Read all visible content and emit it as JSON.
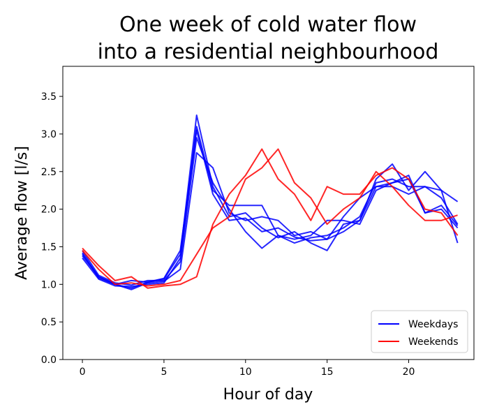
{
  "chart_data": {
    "type": "line",
    "title_lines": [
      "One week of cold water flow",
      "into a residential neighbourhood"
    ],
    "xlabel": "Hour of day",
    "ylabel": "Average flow [l/s]",
    "xlim": [
      -1.2,
      24.0
    ],
    "ylim": [
      0.0,
      3.9
    ],
    "xticks": [
      0,
      5,
      10,
      15,
      20
    ],
    "xtick_labels": [
      "0",
      "5",
      "10",
      "15",
      "20"
    ],
    "yticks": [
      0.0,
      0.5,
      1.0,
      1.5,
      2.0,
      2.5,
      3.0,
      3.5
    ],
    "ytick_labels": [
      "0.0",
      "0.5",
      "1.0",
      "1.5",
      "2.0",
      "2.5",
      "3.0",
      "3.5"
    ],
    "grid": false,
    "legend_position": "lower-right",
    "x": [
      0,
      1,
      2,
      3,
      4,
      5,
      6,
      7,
      8,
      9,
      10,
      11,
      12,
      13,
      14,
      15,
      16,
      17,
      18,
      19,
      20,
      21,
      22,
      23
    ],
    "series": [
      {
        "name": "Weekdays",
        "group": "weekday",
        "color": "#0000ff",
        "values": [
          1.4,
          1.1,
          1.0,
          0.95,
          1.03,
          1.07,
          1.4,
          3.25,
          2.3,
          1.9,
          1.95,
          1.75,
          1.62,
          1.7,
          1.55,
          1.45,
          1.8,
          1.85,
          2.4,
          2.6,
          2.25,
          2.5,
          2.25,
          1.55
        ]
      },
      {
        "name": "Weekdays",
        "group": "weekday",
        "color": "#0000ff",
        "values": [
          1.35,
          1.07,
          0.98,
          0.97,
          1.0,
          1.02,
          1.35,
          3.1,
          2.25,
          2.05,
          2.05,
          2.05,
          1.65,
          1.6,
          1.65,
          1.85,
          1.85,
          1.8,
          2.25,
          2.35,
          2.45,
          1.95,
          2.0,
          1.75
        ]
      },
      {
        "name": "Weekdays",
        "group": "weekday",
        "color": "#0000ff",
        "values": [
          1.45,
          1.12,
          1.02,
          0.99,
          1.05,
          1.05,
          1.3,
          2.95,
          2.35,
          2.0,
          1.7,
          1.48,
          1.65,
          1.55,
          1.62,
          1.65,
          1.75,
          1.9,
          2.35,
          2.4,
          2.3,
          2.3,
          2.15,
          1.8
        ]
      },
      {
        "name": "Weekdays",
        "group": "weekday",
        "color": "#0000ff",
        "values": [
          1.42,
          1.08,
          1.0,
          0.93,
          1.02,
          1.04,
          1.2,
          2.75,
          2.55,
          1.95,
          1.85,
          1.9,
          1.85,
          1.65,
          1.7,
          1.6,
          1.9,
          2.15,
          2.3,
          2.3,
          2.2,
          2.3,
          2.25,
          2.1
        ]
      },
      {
        "name": "Weekdays",
        "group": "weekday",
        "color": "#0000ff",
        "values": [
          1.38,
          1.1,
          1.0,
          1.05,
          1.03,
          1.08,
          1.45,
          3.05,
          2.2,
          1.85,
          1.88,
          1.7,
          1.75,
          1.63,
          1.58,
          1.6,
          1.7,
          1.85,
          2.3,
          2.35,
          2.4,
          1.95,
          2.05,
          1.78
        ]
      },
      {
        "name": "Weekends",
        "group": "weekend",
        "color": "#ff0000",
        "values": [
          1.48,
          1.25,
          1.05,
          1.1,
          0.95,
          0.98,
          1.0,
          1.1,
          1.8,
          2.2,
          2.45,
          2.8,
          2.4,
          2.2,
          1.85,
          2.3,
          2.2,
          2.2,
          2.45,
          2.55,
          2.4,
          2.0,
          1.95,
          1.65
        ]
      },
      {
        "name": "Weekends",
        "group": "weekend",
        "color": "#ff0000",
        "values": [
          1.45,
          1.2,
          1.0,
          1.02,
          0.98,
          1.0,
          1.05,
          1.4,
          1.75,
          1.9,
          2.4,
          2.55,
          2.8,
          2.35,
          2.15,
          1.8,
          2.0,
          2.15,
          2.5,
          2.3,
          2.05,
          1.85,
          1.85,
          1.92
        ]
      }
    ],
    "legend": [
      {
        "label": "Weekdays",
        "color": "#0000ff"
      },
      {
        "label": "Weekends",
        "color": "#ff0000"
      }
    ]
  }
}
